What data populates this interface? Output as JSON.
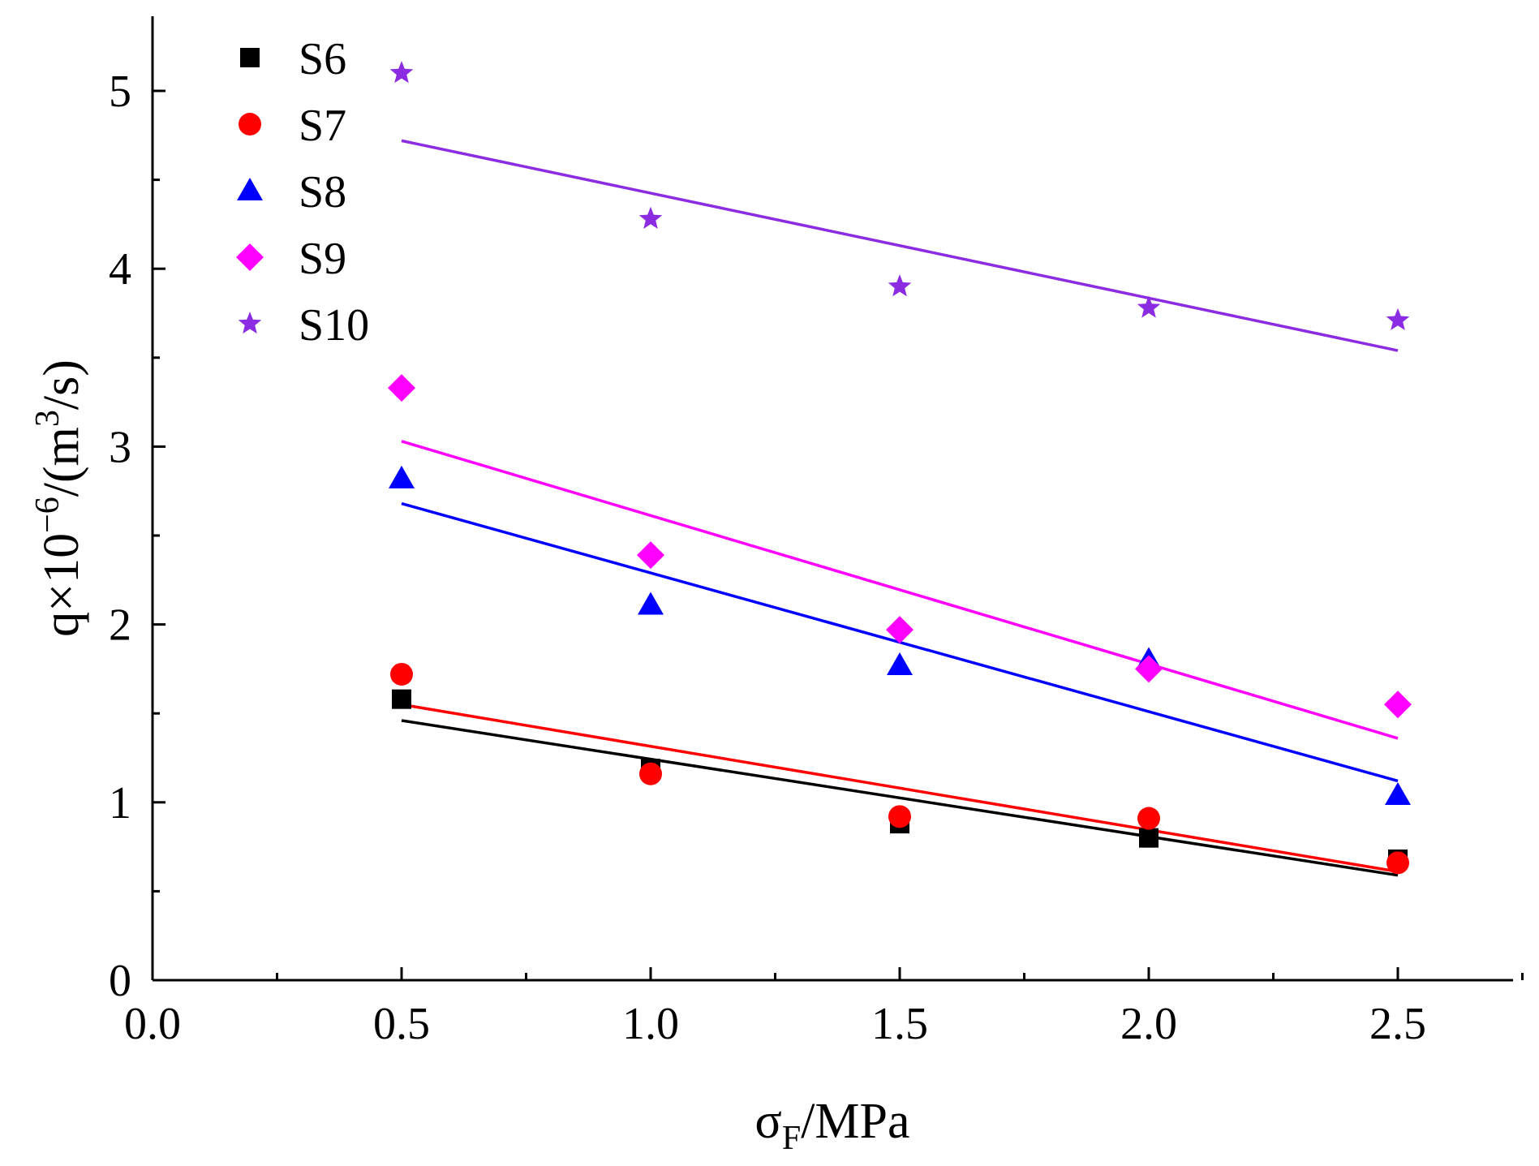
{
  "chart_data": {
    "type": "scatter",
    "title": "",
    "xlabel": {
      "main": "σ",
      "sub": "F",
      "rest": "/MPa"
    },
    "ylabel": {
      "main": "q×10",
      "sup": "−6",
      "mid": "/(m",
      "sup2": "3",
      "end": "/s)"
    },
    "xlim": [
      0,
      2.75
    ],
    "ylim": [
      0,
      5.4
    ],
    "x_ticks": [
      0.0,
      0.5,
      1.0,
      1.5,
      2.0,
      2.5
    ],
    "x_tick_labels": [
      "0.0",
      "0.5",
      "1.0",
      "1.5",
      "2.0",
      "2.5"
    ],
    "x_minor_ticks": [
      0.25,
      0.75,
      1.25,
      1.75,
      2.25,
      2.75
    ],
    "y_ticks": [
      0,
      1,
      2,
      3,
      4,
      5
    ],
    "y_tick_labels": [
      "0",
      "1",
      "2",
      "3",
      "4",
      "5"
    ],
    "y_minor_ticks": [
      0.5,
      1.5,
      2.5,
      3.5,
      4.5
    ],
    "legend_position": "top-left",
    "grid": false,
    "x": [
      0.5,
      1.0,
      1.5,
      2.0,
      2.5
    ],
    "series": [
      {
        "name": "S6",
        "marker": "square",
        "color": "#000000",
        "values": [
          1.58,
          1.19,
          0.88,
          0.8,
          0.68
        ],
        "fit": [
          [
            0.5,
            1.46
          ],
          [
            2.5,
            0.59
          ]
        ]
      },
      {
        "name": "S7",
        "marker": "circle",
        "color": "#ff0000",
        "values": [
          1.72,
          1.16,
          0.92,
          0.91,
          0.66
        ],
        "fit": [
          [
            0.5,
            1.55
          ],
          [
            2.5,
            0.61
          ]
        ]
      },
      {
        "name": "S8",
        "marker": "triangle",
        "color": "#0000ff",
        "values": [
          2.82,
          2.11,
          1.77,
          1.8,
          1.04
        ],
        "fit": [
          [
            0.5,
            2.68
          ],
          [
            2.5,
            1.12
          ]
        ]
      },
      {
        "name": "S9",
        "marker": "diamond",
        "color": "#ff00ff",
        "values": [
          3.33,
          2.39,
          1.97,
          1.75,
          1.55
        ],
        "fit": [
          [
            0.5,
            3.03
          ],
          [
            2.5,
            1.36
          ]
        ]
      },
      {
        "name": "S10",
        "marker": "star",
        "color": "#8b2be2",
        "values": [
          5.1,
          4.28,
          3.9,
          3.78,
          3.71
        ],
        "fit": [
          [
            0.5,
            4.72
          ],
          [
            2.5,
            3.54
          ]
        ]
      }
    ]
  }
}
